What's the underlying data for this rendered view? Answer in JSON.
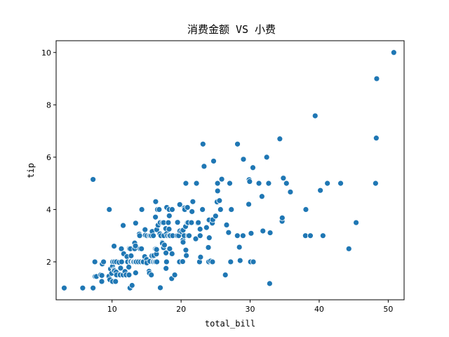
{
  "chart_data": {
    "type": "scatter",
    "title": "消费金额 VS 小费",
    "xlabel": "total_bill",
    "ylabel": "tip",
    "xlim": [
      1.9,
      52.3
    ],
    "ylim": [
      0.55,
      10.45
    ],
    "xticks": [
      10,
      20,
      30,
      40,
      50
    ],
    "yticks": [
      2,
      4,
      6,
      8,
      10
    ],
    "grid": false,
    "color": "#1f77b4",
    "points": [
      [
        3.07,
        1.0
      ],
      [
        5.75,
        1.0
      ],
      [
        7.25,
        1.0
      ],
      [
        7.25,
        5.15
      ],
      [
        7.51,
        2.0
      ],
      [
        7.56,
        1.44
      ],
      [
        7.74,
        1.44
      ],
      [
        8.35,
        1.5
      ],
      [
        8.51,
        1.25
      ],
      [
        8.52,
        1.48
      ],
      [
        8.58,
        1.92
      ],
      [
        8.77,
        2.0
      ],
      [
        9.55,
        1.45
      ],
      [
        9.6,
        4.0
      ],
      [
        9.68,
        1.32
      ],
      [
        9.78,
        1.73
      ],
      [
        9.94,
        1.56
      ],
      [
        10.07,
        1.25
      ],
      [
        10.07,
        1.83
      ],
      [
        10.09,
        2.0
      ],
      [
        10.27,
        1.71
      ],
      [
        10.29,
        2.6
      ],
      [
        10.33,
        1.67
      ],
      [
        10.33,
        2.0
      ],
      [
        10.34,
        1.66
      ],
      [
        10.34,
        2.0
      ],
      [
        10.51,
        1.25
      ],
      [
        10.59,
        1.61
      ],
      [
        10.63,
        2.0
      ],
      [
        10.65,
        1.5
      ],
      [
        11.02,
        1.98
      ],
      [
        11.17,
        1.5
      ],
      [
        11.24,
        1.76
      ],
      [
        11.35,
        2.5
      ],
      [
        11.38,
        2.0
      ],
      [
        11.59,
        1.5
      ],
      [
        11.61,
        3.39
      ],
      [
        11.69,
        2.31
      ],
      [
        11.87,
        1.63
      ],
      [
        12.03,
        1.5
      ],
      [
        12.16,
        2.2
      ],
      [
        12.26,
        2.0
      ],
      [
        12.43,
        1.8
      ],
      [
        12.46,
        1.5
      ],
      [
        12.48,
        2.52
      ],
      [
        12.54,
        2.5
      ],
      [
        12.6,
        1.0
      ],
      [
        12.66,
        2.5
      ],
      [
        12.69,
        2.0
      ],
      [
        12.74,
        2.01
      ],
      [
        12.76,
        2.23
      ],
      [
        12.9,
        1.1
      ],
      [
        13.0,
        2.0
      ],
      [
        13.03,
        2.0
      ],
      [
        13.13,
        2.0
      ],
      [
        13.16,
        2.0
      ],
      [
        13.27,
        2.5
      ],
      [
        13.28,
        2.72
      ],
      [
        13.37,
        2.0
      ],
      [
        13.39,
        2.61
      ],
      [
        13.42,
        1.58
      ],
      [
        13.42,
        3.48
      ],
      [
        13.51,
        2.0
      ],
      [
        13.81,
        2.0
      ],
      [
        13.94,
        3.06
      ],
      [
        14.0,
        3.0
      ],
      [
        14.07,
        2.5
      ],
      [
        14.15,
        2.0
      ],
      [
        14.26,
        2.5
      ],
      [
        14.31,
        4.0
      ],
      [
        14.48,
        2.0
      ],
      [
        14.52,
        2.0
      ],
      [
        14.73,
        2.2
      ],
      [
        14.78,
        3.23
      ],
      [
        14.83,
        3.02
      ],
      [
        15.01,
        2.09
      ],
      [
        15.04,
        1.96
      ],
      [
        15.06,
        3.0
      ],
      [
        15.36,
        1.64
      ],
      [
        15.38,
        3.0
      ],
      [
        15.42,
        1.57
      ],
      [
        15.48,
        2.02
      ],
      [
        15.53,
        3.0
      ],
      [
        15.69,
        1.5
      ],
      [
        15.69,
        3.0
      ],
      [
        15.77,
        2.23
      ],
      [
        15.81,
        3.16
      ],
      [
        15.95,
        2.0
      ],
      [
        15.98,
        2.03
      ],
      [
        15.98,
        3.0
      ],
      [
        16.0,
        2.0
      ],
      [
        16.04,
        2.24
      ],
      [
        16.21,
        2.0
      ],
      [
        16.27,
        2.5
      ],
      [
        16.29,
        3.71
      ],
      [
        16.31,
        2.0
      ],
      [
        16.32,
        4.3
      ],
      [
        16.4,
        2.5
      ],
      [
        16.43,
        2.3
      ],
      [
        16.45,
        2.47
      ],
      [
        16.47,
        3.23
      ],
      [
        16.49,
        2.0
      ],
      [
        16.58,
        4.0
      ],
      [
        16.66,
        3.4
      ],
      [
        16.82,
        4.0
      ],
      [
        16.93,
        3.07
      ],
      [
        16.97,
        3.5
      ],
      [
        16.99,
        1.01
      ],
      [
        17.07,
        3.0
      ],
      [
        17.26,
        2.74
      ],
      [
        17.29,
        2.71
      ],
      [
        17.31,
        3.5
      ],
      [
        17.46,
        2.54
      ],
      [
        17.47,
        3.5
      ],
      [
        17.51,
        3.0
      ],
      [
        17.59,
        2.64
      ],
      [
        17.78,
        3.27
      ],
      [
        17.81,
        2.34
      ],
      [
        17.82,
        1.75
      ],
      [
        17.89,
        2.0
      ],
      [
        17.92,
        3.08
      ],
      [
        17.92,
        4.08
      ],
      [
        18.04,
        3.0
      ],
      [
        18.15,
        3.5
      ],
      [
        18.24,
        3.76
      ],
      [
        18.26,
        3.25
      ],
      [
        18.28,
        4.0
      ],
      [
        18.29,
        3.0
      ],
      [
        18.29,
        3.76
      ],
      [
        18.35,
        2.5
      ],
      [
        18.43,
        3.0
      ],
      [
        18.64,
        1.36
      ],
      [
        18.69,
        2.31
      ],
      [
        18.71,
        4.0
      ],
      [
        18.78,
        3.0
      ],
      [
        19.08,
        1.5
      ],
      [
        19.44,
        3.0
      ],
      [
        19.49,
        3.51
      ],
      [
        19.65,
        3.0
      ],
      [
        19.77,
        2.0
      ],
      [
        19.81,
        4.19
      ],
      [
        19.82,
        3.18
      ],
      [
        20.08,
        3.15
      ],
      [
        20.23,
        2.01
      ],
      [
        20.27,
        2.83
      ],
      [
        20.29,
        2.75
      ],
      [
        20.29,
        3.21
      ],
      [
        20.45,
        3.0
      ],
      [
        20.49,
        4.06
      ],
      [
        20.53,
        4.0
      ],
      [
        20.65,
        3.35
      ],
      [
        20.69,
        2.45
      ],
      [
        20.69,
        5.0
      ],
      [
        20.76,
        2.24
      ],
      [
        20.9,
        3.5
      ],
      [
        20.92,
        4.08
      ],
      [
        21.01,
        3.5
      ],
      [
        21.01,
        3.0
      ],
      [
        21.16,
        3.0
      ],
      [
        21.5,
        3.5
      ],
      [
        21.58,
        3.92
      ],
      [
        21.7,
        4.3
      ],
      [
        22.12,
        2.88
      ],
      [
        22.23,
        5.0
      ],
      [
        22.42,
        3.48
      ],
      [
        22.49,
        3.5
      ],
      [
        22.67,
        2.0
      ],
      [
        22.75,
        3.25
      ],
      [
        22.76,
        3.0
      ],
      [
        22.82,
        2.18
      ],
      [
        23.1,
        4.0
      ],
      [
        23.17,
        6.5
      ],
      [
        23.33,
        5.65
      ],
      [
        23.68,
        3.31
      ],
      [
        23.95,
        2.55
      ],
      [
        24.01,
        2.0
      ],
      [
        24.06,
        3.6
      ],
      [
        24.08,
        2.92
      ],
      [
        24.27,
        2.03
      ],
      [
        24.52,
        3.48
      ],
      [
        24.55,
        2.0
      ],
      [
        24.59,
        3.61
      ],
      [
        24.71,
        5.85
      ],
      [
        25.0,
        3.75
      ],
      [
        25.21,
        4.29
      ],
      [
        25.28,
        5.0
      ],
      [
        25.29,
        4.71
      ],
      [
        25.56,
        4.34
      ],
      [
        25.71,
        4.0
      ],
      [
        25.89,
        5.16
      ],
      [
        26.41,
        1.5
      ],
      [
        26.59,
        3.41
      ],
      [
        26.86,
        3.14
      ],
      [
        26.88,
        3.12
      ],
      [
        27.05,
        5.0
      ],
      [
        27.18,
        2.0
      ],
      [
        27.2,
        4.0
      ],
      [
        27.28,
        4.0
      ],
      [
        28.15,
        3.0
      ],
      [
        28.17,
        6.5
      ],
      [
        28.44,
        2.56
      ],
      [
        28.55,
        2.05
      ],
      [
        28.97,
        3.0
      ],
      [
        29.03,
        5.92
      ],
      [
        29.8,
        4.2
      ],
      [
        29.85,
        5.14
      ],
      [
        29.93,
        5.07
      ],
      [
        30.06,
        2.0
      ],
      [
        30.14,
        3.09
      ],
      [
        30.4,
        5.6
      ],
      [
        30.46,
        2.0
      ],
      [
        31.27,
        5.0
      ],
      [
        31.71,
        4.5
      ],
      [
        31.85,
        3.18
      ],
      [
        32.4,
        6.0
      ],
      [
        32.68,
        5.0
      ],
      [
        32.83,
        1.17
      ],
      [
        32.9,
        3.11
      ],
      [
        34.3,
        6.7
      ],
      [
        34.63,
        3.55
      ],
      [
        34.65,
        3.68
      ],
      [
        34.81,
        5.2
      ],
      [
        35.26,
        5.0
      ],
      [
        35.83,
        4.67
      ],
      [
        38.01,
        3.0
      ],
      [
        38.07,
        4.0
      ],
      [
        38.73,
        3.0
      ],
      [
        39.42,
        7.58
      ],
      [
        40.17,
        4.73
      ],
      [
        40.55,
        3.0
      ],
      [
        41.19,
        5.0
      ],
      [
        43.11,
        5.0
      ],
      [
        44.3,
        2.5
      ],
      [
        45.35,
        3.5
      ],
      [
        48.17,
        5.0
      ],
      [
        48.27,
        6.73
      ],
      [
        48.33,
        9.0
      ],
      [
        50.81,
        10.0
      ]
    ]
  }
}
